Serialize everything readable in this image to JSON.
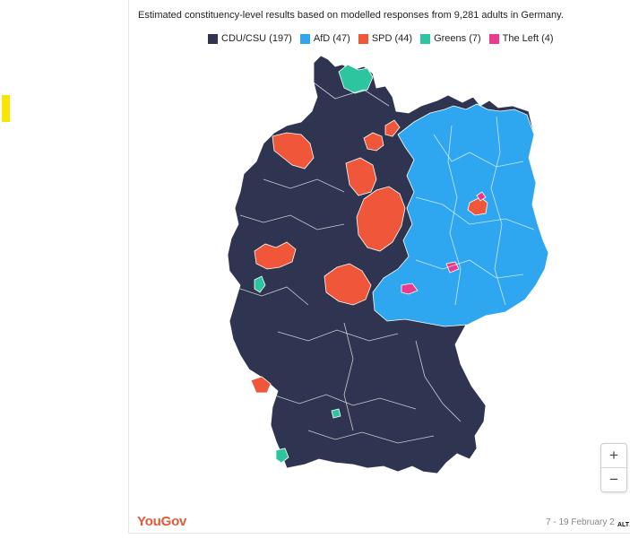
{
  "header": {
    "subtitle": "Estimated constituency-level results based on modelled responses from 9,281 adults in Germany."
  },
  "legend": [
    {
      "label": "CDU/CSU (197)",
      "color": "#2f3550"
    },
    {
      "label": "AfD (47)",
      "color": "#2ea6f0"
    },
    {
      "label": "SPD (44)",
      "color": "#f0563a"
    },
    {
      "label": "Greens (7)",
      "color": "#2cc59f"
    },
    {
      "label": "The Left (4)",
      "color": "#ea3a8e"
    }
  ],
  "colors": {
    "cdu": "#2f3550",
    "afd": "#2ea6f0",
    "spd": "#f0563a",
    "greens": "#2cc59f",
    "left": "#ea3a8e"
  },
  "controls": {
    "zoom_in": "+",
    "zoom_out": "−"
  },
  "footer": {
    "logo": "YouGov",
    "date": "7 - 19 February 2",
    "alt_badge": "ALT"
  }
}
